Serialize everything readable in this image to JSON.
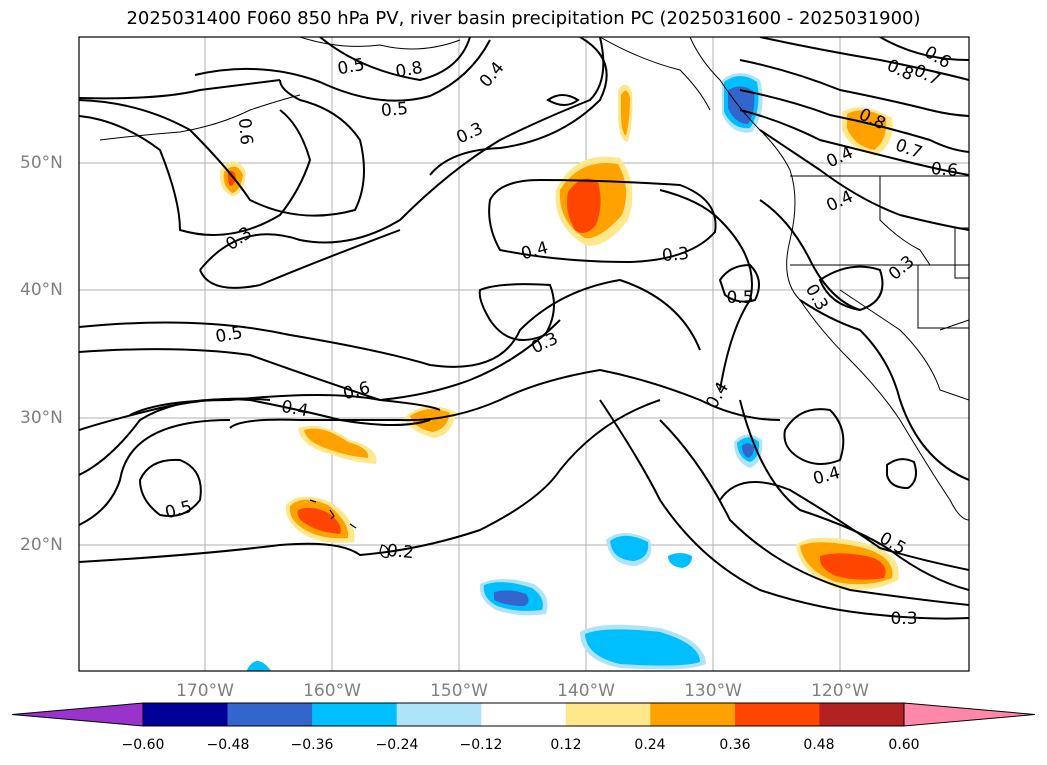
{
  "title": "2025031400 F060 850 hPa PV, river basin precipitation PC (2025031600 - 2025031900)",
  "lon_labels": [
    "170°W",
    "160°W",
    "150°W",
    "140°W",
    "130°W",
    "120°W"
  ],
  "lat_labels": [
    "50°N",
    "40°N",
    "30°N",
    "20°N"
  ],
  "colorbar": {
    "ticks": [
      "−0.60",
      "−0.48",
      "−0.36",
      "−0.24",
      "−0.12",
      "0.12",
      "0.24",
      "0.36",
      "0.48",
      "0.60"
    ],
    "colors": [
      "#9933cc",
      "#000099",
      "#3366cc",
      "#00bfff",
      "#aee3fa",
      "#ffffff",
      "#ffe88c",
      "#ffa200",
      "#ff4500",
      "#b22222",
      "#ff88aa"
    ]
  },
  "contour_labels": [
    {
      "text": "0.5",
      "id": "c1"
    },
    {
      "text": "0.3",
      "id": "c2"
    },
    {
      "text": "0.4",
      "id": "c3"
    },
    {
      "text": "0.3",
      "id": "c4"
    },
    {
      "text": "0.4",
      "id": "c5"
    },
    {
      "text": "0.3",
      "id": "c6"
    },
    {
      "text": "0.5",
      "id": "c7"
    },
    {
      "text": "0.6",
      "id": "c8"
    },
    {
      "text": "0.4",
      "id": "c9"
    },
    {
      "text": "0.5",
      "id": "c10"
    },
    {
      "text": "0.2",
      "id": "c11"
    },
    {
      "text": "0.5",
      "id": "c12"
    },
    {
      "text": "0.4",
      "id": "c13"
    },
    {
      "text": "0.4",
      "id": "c14"
    },
    {
      "text": "0.5",
      "id": "c15"
    },
    {
      "text": "0.3",
      "id": "c16"
    },
    {
      "text": "0.8",
      "id": "c17"
    },
    {
      "text": "0.7",
      "id": "c18"
    },
    {
      "text": "0.6",
      "id": "c19"
    },
    {
      "text": "0.4",
      "id": "c20"
    },
    {
      "text": "0.4",
      "id": "c21"
    },
    {
      "text": "0.3",
      "id": "c22"
    },
    {
      "text": "0.6",
      "id": "c23"
    },
    {
      "text": "0.7",
      "id": "c24"
    },
    {
      "text": "0.8",
      "id": "c25"
    },
    {
      "text": "0.3",
      "id": "c26"
    },
    {
      "text": "0.5",
      "id": "c27"
    },
    {
      "text": "0.3",
      "id": "c28"
    },
    {
      "text": "0.6",
      "id": "c29"
    },
    {
      "text": "0.8",
      "id": "c30"
    }
  ]
}
